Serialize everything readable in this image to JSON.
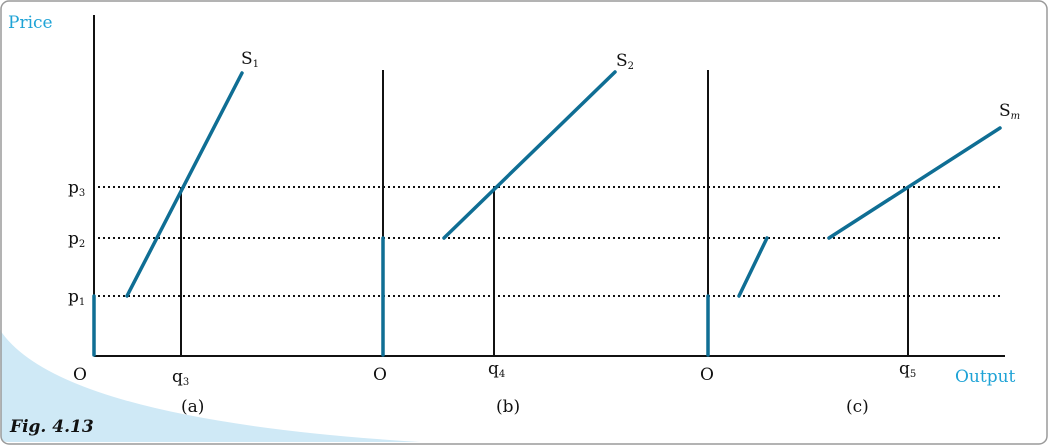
{
  "axis_labels": {
    "y": "Price",
    "x": "Output"
  },
  "price_levels": [
    {
      "main": "p",
      "sub": "1"
    },
    {
      "main": "p",
      "sub": "2"
    },
    {
      "main": "p",
      "sub": "3"
    }
  ],
  "panels": [
    {
      "origin": "O",
      "curve": {
        "main": "S",
        "sub": "1"
      },
      "quantity": {
        "main": "q",
        "sub": "3"
      },
      "caption": "(a)"
    },
    {
      "origin": "O",
      "curve": {
        "main": "S",
        "sub": "2"
      },
      "quantity": {
        "main": "q",
        "sub": "4"
      },
      "caption": "(b)"
    },
    {
      "origin": "O",
      "curve": {
        "main": "S",
        "sub": "m"
      },
      "quantity": {
        "main": "q",
        "sub": "5"
      },
      "caption": "(c)"
    }
  ],
  "figure": "Fig. 4.13"
}
